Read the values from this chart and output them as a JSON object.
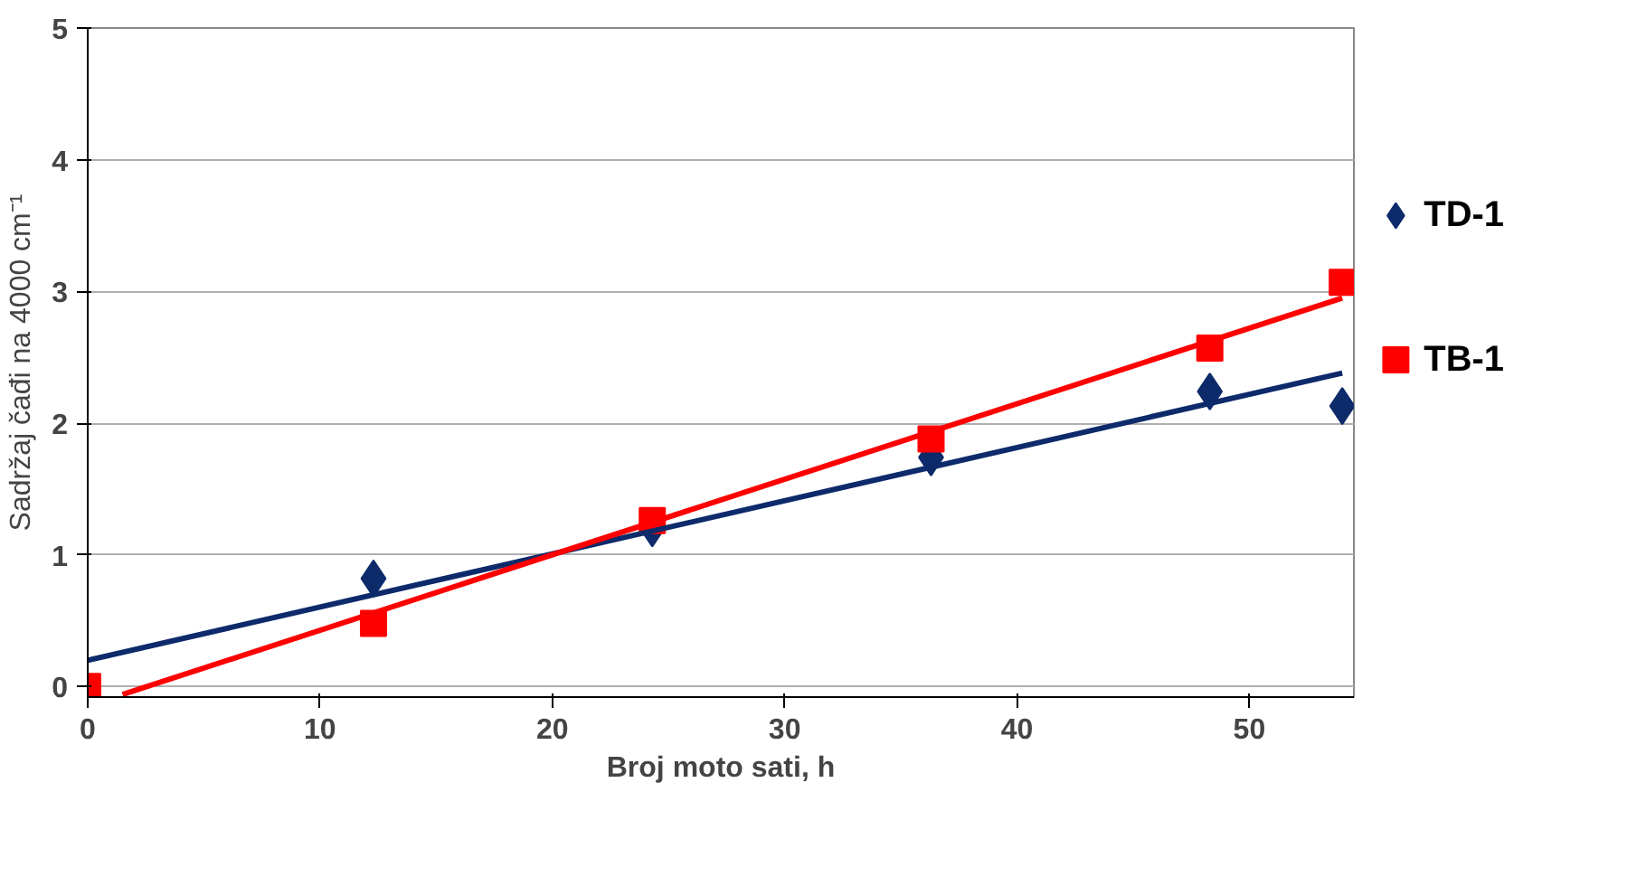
{
  "chart_data": {
    "type": "scatter",
    "xlabel": "Broj moto sati, h",
    "ylabel": "Sadržaj čađi na 4000 cm⁻¹",
    "xlim": [
      0,
      54.5
    ],
    "ylim": [
      -0.08,
      5
    ],
    "xticks": [
      0,
      10,
      20,
      30,
      40,
      50
    ],
    "yticks": [
      0,
      1,
      2,
      3,
      4,
      5
    ],
    "grid": "y",
    "legend": "right",
    "series": [
      {
        "name": "TD-1",
        "color": "#0d2a6b",
        "marker": "diamond",
        "x": [
          12.3,
          24.3,
          36.3,
          48.3,
          54
        ],
        "values": [
          0.82,
          1.2,
          1.74,
          2.24,
          2.13
        ]
      },
      {
        "name": "TB-1",
        "color": "#ff0000",
        "marker": "square",
        "x": [
          0,
          12.3,
          24.3,
          36.3,
          48.3,
          54
        ],
        "values": [
          0,
          0.48,
          1.26,
          1.88,
          2.57,
          3.07
        ]
      },
      {
        "type": "line",
        "color": "#0d2a6b",
        "x": [
          0,
          54
        ],
        "values": [
          0.2,
          2.38
        ]
      },
      {
        "type": "line",
        "color": "#ff0000",
        "x": [
          1.5,
          54
        ],
        "values": [
          -0.06,
          2.95
        ]
      }
    ]
  }
}
